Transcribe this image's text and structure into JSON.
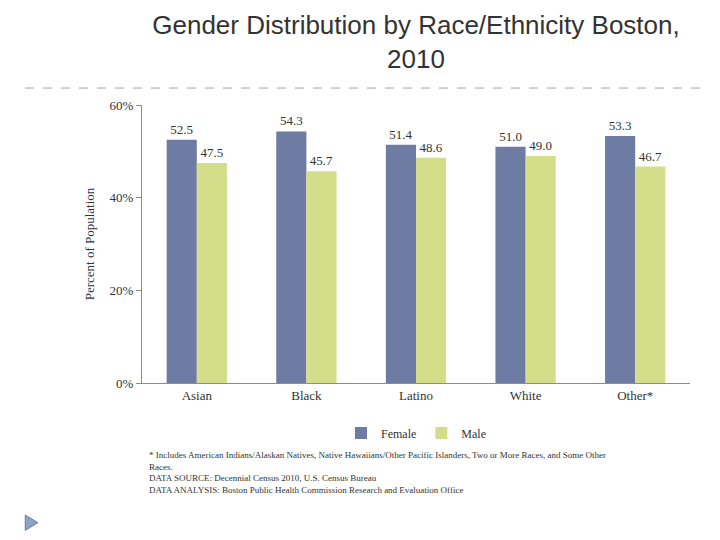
{
  "chart_data": {
    "type": "bar",
    "title": "Gender Distribution by Race/Ethnicity Boston, 2010",
    "y_label": "Percent of Population",
    "categories": [
      "Asian",
      "Black",
      "Latino",
      "White",
      "Other*"
    ],
    "series": [
      {
        "name": "Female",
        "color": "#6e7ba2",
        "values": [
          52.5,
          54.3,
          51.4,
          51.0,
          53.3
        ],
        "value_labels": [
          "52.5",
          "54.3",
          "51.4",
          "51.0",
          "53.3"
        ]
      },
      {
        "name": "Male",
        "color": "#d4dd8a",
        "values": [
          47.5,
          45.7,
          48.6,
          49.0,
          46.7
        ],
        "value_labels": [
          "47.5",
          "45.7",
          "48.6",
          "49.0",
          "46.7"
        ]
      }
    ],
    "ylim": [
      0,
      60
    ],
    "yticks": [
      {
        "value": 0,
        "label": "0%"
      },
      {
        "value": 20,
        "label": "20%"
      },
      {
        "value": 40,
        "label": "40%"
      },
      {
        "value": 60,
        "label": "60%"
      }
    ],
    "grid": false,
    "legend": "bottom",
    "data_labels": true,
    "notes": [
      "* Includes American Indians/Alaskan Natives, Native Hawaiians/Other Pacific Islanders, Two or More Races, and Some Other",
      "Races.",
      "DATA SOURCE: Decennial Census 2010, U.S. Census Bureau",
      "DATA ANALYSIS: Boston Public Health Commission Research and Evaluation Office"
    ]
  }
}
